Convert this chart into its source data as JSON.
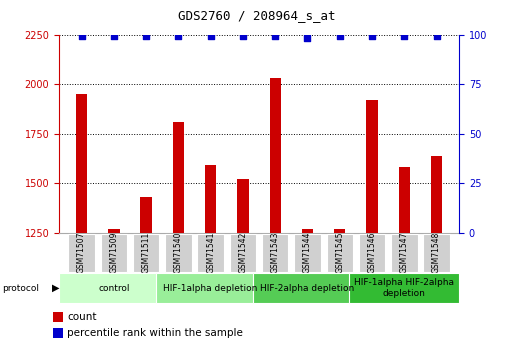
{
  "title": "GDS2760 / 208964_s_at",
  "samples": [
    "GSM71507",
    "GSM71509",
    "GSM71511",
    "GSM71540",
    "GSM71541",
    "GSM71542",
    "GSM71543",
    "GSM71544",
    "GSM71545",
    "GSM71546",
    "GSM71547",
    "GSM71548"
  ],
  "counts": [
    1950,
    1270,
    1430,
    1810,
    1590,
    1520,
    2030,
    1270,
    1270,
    1920,
    1580,
    1640
  ],
  "percentile_ranks": [
    99,
    99,
    99,
    99,
    99,
    99,
    99,
    98,
    99,
    99,
    99,
    99
  ],
  "ylim_left": [
    1250,
    2250
  ],
  "ylim_right": [
    0,
    100
  ],
  "yticks_left": [
    1250,
    1500,
    1750,
    2000,
    2250
  ],
  "yticks_right": [
    0,
    25,
    50,
    75,
    100
  ],
  "bar_color": "#cc0000",
  "dot_color": "#0000cc",
  "protocols": [
    {
      "label": "control",
      "start": 0,
      "end": 3,
      "color": "#ccffcc"
    },
    {
      "label": "HIF-1alpha depletion",
      "start": 3,
      "end": 6,
      "color": "#99ee99"
    },
    {
      "label": "HIF-2alpha depletion",
      "start": 6,
      "end": 9,
      "color": "#55cc55"
    },
    {
      "label": "HIF-1alpha HIF-2alpha\ndepletion",
      "start": 9,
      "end": 12,
      "color": "#33bb33"
    }
  ],
  "bar_width": 0.35,
  "bg_color": "#ffffff",
  "label_count": "count",
  "label_pct": "percentile rank within the sample",
  "tick_color_left": "#cc0000",
  "tick_color_right": "#0000cc",
  "sample_box_color": "#d0d0d0",
  "title_fontsize": 9,
  "tick_fontsize": 7,
  "sample_fontsize": 5.5,
  "proto_fontsize": 6.5,
  "legend_fontsize": 7.5
}
